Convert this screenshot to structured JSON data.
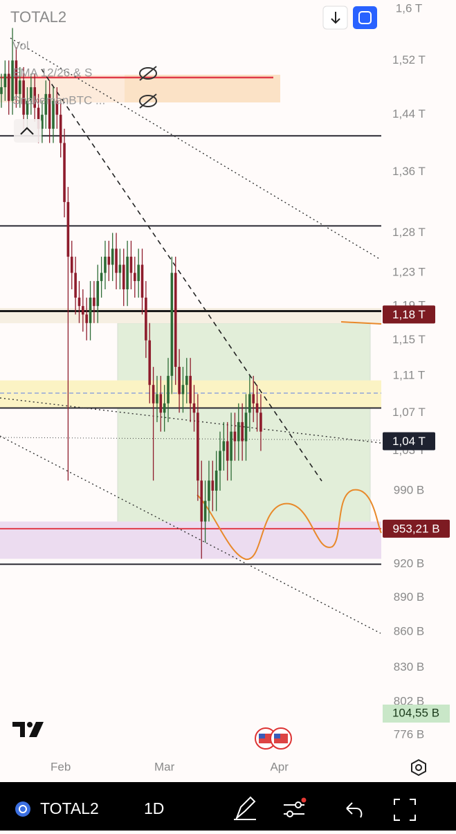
{
  "header": {
    "symbol": "TOTAL2"
  },
  "legend": {
    "volume": "Vol",
    "indicators": [
      "EMA 12/26 & S",
      "SnakemanBTC ..."
    ]
  },
  "toolbar": {
    "symbol": "TOTAL2",
    "interval": "1D"
  },
  "volume_label": "104,55 B",
  "chart_data": {
    "type": "candlestick",
    "yscale": "log",
    "ylim": [
      776,
      1600
    ],
    "yticks": [
      {
        "value": 1600,
        "label": "1,6 T"
      },
      {
        "value": 1520,
        "label": "1,52 T"
      },
      {
        "value": 1440,
        "label": "1,44 T"
      },
      {
        "value": 1360,
        "label": "1,36 T"
      },
      {
        "value": 1280,
        "label": "1,28 T"
      },
      {
        "value": 1230,
        "label": "1,23 T"
      },
      {
        "value": 1190,
        "label": "1,19 T"
      },
      {
        "value": 1150,
        "label": "1,15 T"
      },
      {
        "value": 1110,
        "label": "1,11 T"
      },
      {
        "value": 1070,
        "label": "1,07 T"
      },
      {
        "value": 1030,
        "label": "1,03 T"
      },
      {
        "value": 990,
        "label": "990 B"
      },
      {
        "value": 920,
        "label": "920 B"
      },
      {
        "value": 890,
        "label": "890 B"
      },
      {
        "value": 860,
        "label": "860 B"
      },
      {
        "value": 830,
        "label": "830 B"
      },
      {
        "value": 802,
        "label": "802 B"
      },
      {
        "value": 776,
        "label": "776 B"
      }
    ],
    "xlim": [
      0,
      102.5
    ],
    "xticks": [
      {
        "value": 16,
        "label": "Feb"
      },
      {
        "value": 44,
        "label": "Mar"
      },
      {
        "value": 75,
        "label": "Apr"
      }
    ],
    "up_color": "#2c6b35",
    "down_color": "#8e1c2c",
    "candles": {
      "open": [
        1470,
        1480,
        1500,
        1460,
        1520,
        1470,
        1490,
        1440,
        1460,
        1480,
        1450,
        1420,
        1440,
        1470,
        1420,
        1460,
        1440,
        1400,
        1320,
        1250,
        1230,
        1200,
        1190,
        1180,
        1170,
        1200,
        1190,
        1220,
        1230,
        1250,
        1240,
        1260,
        1230,
        1240,
        1210,
        1250,
        1230,
        1220,
        1240,
        1200,
        1150,
        1100,
        1080,
        1090,
        1070,
        1080,
        1110,
        1230,
        1120,
        1090,
        1100,
        1110,
        1080,
        1070,
        1000,
        960,
        980,
        1000,
        990,
        1010,
        1030,
        1040,
        1020,
        1050,
        1040,
        1060,
        1040,
        1070,
        1090,
        1080,
        1070
      ],
      "high": [
        1500,
        1520,
        1520,
        1570,
        1540,
        1510,
        1510,
        1480,
        1500,
        1500,
        1470,
        1460,
        1490,
        1490,
        1480,
        1480,
        1460,
        1420,
        1340,
        1270,
        1250,
        1220,
        1210,
        1200,
        1220,
        1220,
        1240,
        1250,
        1270,
        1270,
        1280,
        1280,
        1260,
        1260,
        1270,
        1270,
        1250,
        1260,
        1260,
        1220,
        1170,
        1120,
        1110,
        1110,
        1100,
        1130,
        1250,
        1250,
        1140,
        1120,
        1130,
        1130,
        1100,
        1090,
        1020,
        1000,
        1020,
        1020,
        1030,
        1050,
        1060,
        1060,
        1070,
        1070,
        1080,
        1080,
        1090,
        1110,
        1110,
        1100,
        1090
      ],
      "low": [
        1450,
        1460,
        1440,
        1440,
        1450,
        1450,
        1420,
        1420,
        1440,
        1430,
        1400,
        1400,
        1420,
        1400,
        1400,
        1420,
        1380,
        1300,
        1000,
        1210,
        1180,
        1170,
        1160,
        1150,
        1150,
        1170,
        1170,
        1200,
        1210,
        1220,
        1220,
        1210,
        1210,
        1190,
        1190,
        1210,
        1200,
        1200,
        1180,
        1130,
        1080,
        1000,
        1060,
        1050,
        1050,
        1060,
        1090,
        1100,
        1070,
        1070,
        1080,
        1060,
        1050,
        980,
        925,
        940,
        960,
        970,
        970,
        990,
        1010,
        1000,
        1000,
        1020,
        1020,
        1020,
        1020,
        1050,
        1060,
        1050,
        1030
      ],
      "close": [
        1480,
        1500,
        1460,
        1520,
        1470,
        1490,
        1440,
        1460,
        1480,
        1450,
        1420,
        1440,
        1470,
        1420,
        1460,
        1440,
        1400,
        1320,
        1250,
        1230,
        1200,
        1190,
        1180,
        1170,
        1200,
        1190,
        1220,
        1230,
        1250,
        1240,
        1260,
        1230,
        1240,
        1210,
        1250,
        1230,
        1220,
        1240,
        1200,
        1150,
        1100,
        1080,
        1090,
        1070,
        1080,
        1110,
        1230,
        1120,
        1090,
        1100,
        1110,
        1080,
        1070,
        1000,
        960,
        980,
        1000,
        990,
        1010,
        1030,
        1040,
        1020,
        1050,
        1040,
        1060,
        1040,
        1070,
        1090,
        1080,
        1070,
        1050
      ]
    },
    "levels": [
      {
        "value": 1410,
        "color": "#2a2a33"
      },
      {
        "value": 1289,
        "color": "#2a2a33"
      },
      {
        "value": 1184,
        "color": "#1a1a1a"
      },
      {
        "value": 1075,
        "color": "#2a2a33"
      },
      {
        "value": 953.21,
        "color": "#e03a48"
      },
      {
        "value": 920,
        "color": "#2a2a33"
      }
    ],
    "zones": [
      {
        "from": 957,
        "to": 1170,
        "color": "#e2eed9"
      },
      {
        "from": 1075,
        "to": 1105,
        "color": "#fbf3c4"
      },
      {
        "from": 925,
        "to": 960,
        "color": "#ecdcf0"
      }
    ],
    "price_labels": [
      {
        "value": 1180,
        "label": "1,18 T",
        "color": "#7d1b22"
      },
      {
        "value": 1040,
        "label": "1,04 T",
        "color": "#1e2230"
      },
      {
        "value": 953.21,
        "label": "953,21 B",
        "color": "#7d1b22"
      }
    ]
  }
}
